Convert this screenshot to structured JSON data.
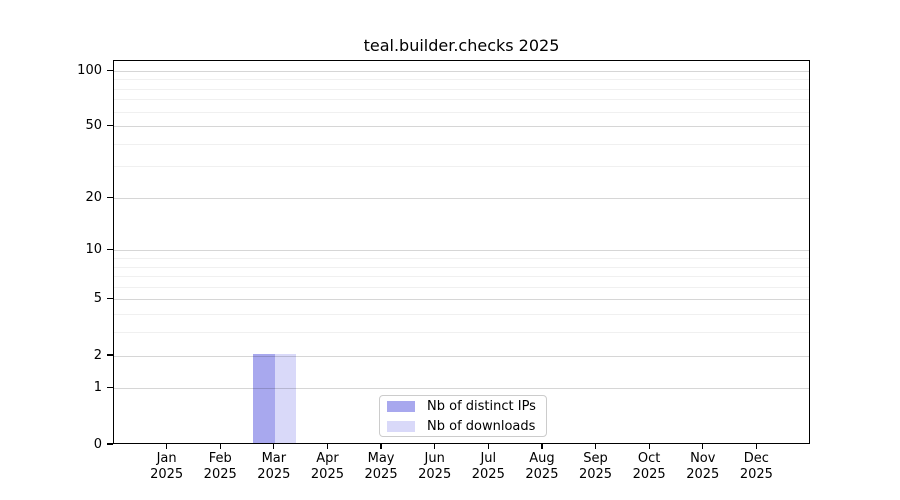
{
  "chart_data": {
    "type": "bar",
    "title": "teal.builder.checks 2025",
    "x": {
      "categories": [
        "Jan",
        "Feb",
        "Mar",
        "Apr",
        "May",
        "Jun",
        "Jul",
        "Aug",
        "Sep",
        "Oct",
        "Nov",
        "Dec"
      ],
      "year": "2025"
    },
    "series": [
      {
        "name": "Nb of distinct IPs",
        "color": "#a8a8ee",
        "values": [
          0,
          0,
          2,
          0,
          0,
          0,
          0,
          0,
          0,
          0,
          0,
          0
        ]
      },
      {
        "name": "Nb of downloads",
        "color": "#d9d9f9",
        "values": [
          0,
          0,
          2,
          0,
          0,
          0,
          0,
          0,
          0,
          0,
          0,
          0
        ]
      }
    ],
    "y_axis": {
      "scale": "log1p",
      "major_ticks": [
        0,
        1,
        2,
        5,
        10,
        20,
        50,
        100
      ],
      "minor_ticks": [
        3,
        4,
        6,
        7,
        8,
        9,
        30,
        40,
        60,
        70,
        80,
        90
      ],
      "top_value": 113
    },
    "legend_position": "bottom-center-inside",
    "grid": true
  },
  "colors": {
    "axis": "#000000",
    "text": "#000000",
    "background": "#ffffff",
    "grid_major": "rgba(0,0,0,0.16)",
    "grid_minor": "rgba(0,0,0,0.06)",
    "legend_border": "#cccccc"
  }
}
